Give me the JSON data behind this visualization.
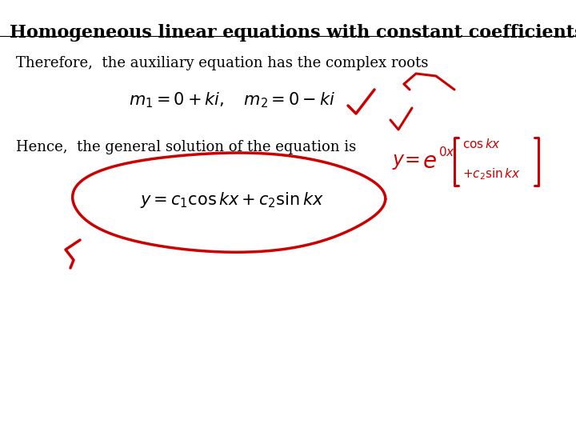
{
  "title": "Homogeneous linear equations with constant coefficients",
  "title_fontsize": 16,
  "bg_color": "#ffffff",
  "text1": "Therefore,  the auxiliary equation has the complex roots",
  "text1_fontsize": 13,
  "formula1": "$m_1 = 0 + ki, \\quad m_2 = 0 - ki$",
  "formula1_fontsize": 15,
  "text2": "Hence,  the general solution of the equation is",
  "text2_fontsize": 13,
  "formula2": "$y = c_1 \\cos kx + c_2 \\sin kx$",
  "formula2_fontsize": 15,
  "red_color": "#cc0000"
}
